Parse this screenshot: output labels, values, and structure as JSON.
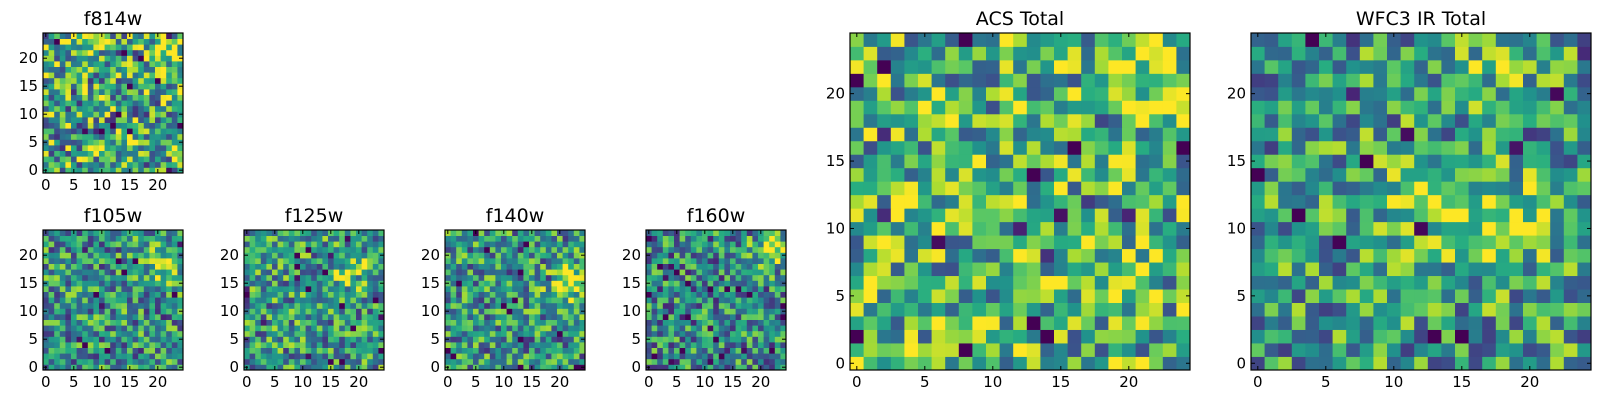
{
  "chart_data": [
    {
      "type": "heatmap",
      "title": "f814w",
      "grid_size": 25,
      "colormap": "viridis",
      "xticks": [
        "0",
        "5",
        "10",
        "15",
        "20"
      ],
      "yticks": [
        "0",
        "5",
        "10",
        "15",
        "20"
      ],
      "xlim": [
        0,
        25
      ],
      "ylim": [
        0,
        25
      ],
      "value_range": [
        0,
        1
      ],
      "seed": 11,
      "level": 0.6,
      "variance": 0.55,
      "hotspots": [
        {
          "x": 21,
          "y": 21,
          "amp": 0.3
        },
        {
          "x": 14,
          "y": 5,
          "amp": 0.2
        }
      ]
    },
    {
      "type": "heatmap",
      "title": "f105w",
      "grid_size": 25,
      "colormap": "viridis",
      "xticks": [
        "0",
        "5",
        "10",
        "15",
        "20"
      ],
      "yticks": [
        "0",
        "5",
        "10",
        "15",
        "20"
      ],
      "xlim": [
        0,
        25
      ],
      "ylim": [
        0,
        25
      ],
      "value_range": [
        0,
        1
      ],
      "seed": 23,
      "level": 0.52,
      "variance": 0.45,
      "hotspots": [
        {
          "x": 21,
          "y": 18,
          "amp": 0.35
        }
      ]
    },
    {
      "type": "heatmap",
      "title": "f125w",
      "grid_size": 25,
      "colormap": "viridis",
      "xticks": [
        "0",
        "5",
        "10",
        "15",
        "20"
      ],
      "yticks": [
        "0",
        "5",
        "10",
        "15",
        "20"
      ],
      "xlim": [
        0,
        25
      ],
      "ylim": [
        0,
        25
      ],
      "value_range": [
        0,
        1
      ],
      "seed": 37,
      "level": 0.54,
      "variance": 0.45,
      "hotspots": [
        {
          "x": 19,
          "y": 17,
          "amp": 0.3
        }
      ]
    },
    {
      "type": "heatmap",
      "title": "f140w",
      "grid_size": 25,
      "colormap": "viridis",
      "xticks": [
        "0",
        "5",
        "10",
        "15",
        "20"
      ],
      "yticks": [
        "0",
        "5",
        "10",
        "15",
        "20"
      ],
      "xlim": [
        0,
        25
      ],
      "ylim": [
        0,
        25
      ],
      "value_range": [
        0,
        1
      ],
      "seed": 41,
      "level": 0.52,
      "variance": 0.45,
      "hotspots": [
        {
          "x": 21,
          "y": 15,
          "amp": 0.4
        }
      ]
    },
    {
      "type": "heatmap",
      "title": "f160w",
      "grid_size": 25,
      "colormap": "viridis",
      "xticks": [
        "0",
        "5",
        "10",
        "15",
        "20"
      ],
      "yticks": [
        "0",
        "5",
        "10",
        "15",
        "20"
      ],
      "xlim": [
        0,
        25
      ],
      "ylim": [
        0,
        25
      ],
      "value_range": [
        0,
        1
      ],
      "seed": 53,
      "level": 0.48,
      "variance": 0.45,
      "hotspots": [
        {
          "x": 22,
          "y": 21,
          "amp": 0.45
        }
      ]
    },
    {
      "type": "heatmap",
      "title": "ACS Total",
      "grid_size": 25,
      "colormap": "viridis",
      "xticks": [
        "0",
        "5",
        "10",
        "15",
        "20"
      ],
      "yticks": [
        "0",
        "5",
        "10",
        "15",
        "20"
      ],
      "xlim": [
        0,
        25
      ],
      "ylim": [
        0,
        25
      ],
      "value_range": [
        0,
        1
      ],
      "seed": 67,
      "level": 0.64,
      "variance": 0.5,
      "hotspots": [
        {
          "x": 22,
          "y": 21,
          "amp": 0.3
        },
        {
          "x": 16,
          "y": 9,
          "amp": 0.15
        }
      ]
    },
    {
      "type": "heatmap",
      "title": "WFC3 IR Total",
      "grid_size": 25,
      "colormap": "viridis",
      "xticks": [
        "0",
        "5",
        "10",
        "15",
        "20"
      ],
      "yticks": [
        "0",
        "5",
        "10",
        "15",
        "20"
      ],
      "xlim": [
        0,
        25
      ],
      "ylim": [
        0,
        25
      ],
      "value_range": [
        0,
        1
      ],
      "seed": 79,
      "level": 0.55,
      "variance": 0.45,
      "hotspots": [
        {
          "x": 18,
          "y": 10,
          "amp": 0.4
        },
        {
          "x": 12,
          "y": 12,
          "amp": 0.3
        },
        {
          "x": 18,
          "y": 23,
          "amp": 0.2
        }
      ]
    }
  ]
}
